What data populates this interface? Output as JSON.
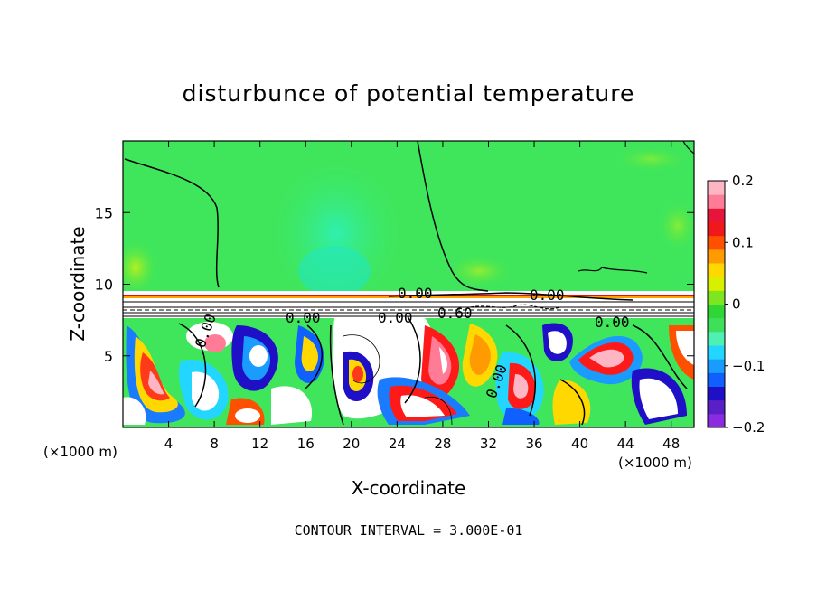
{
  "chart_data": {
    "type": "heatmap",
    "title": "disturbunce of potential temperature",
    "xlabel": "X-coordinate",
    "ylabel": "Z-coordinate",
    "x_unit_left": "(×1000 m)",
    "x_unit_right": "(×1000 m)",
    "xlim": [
      0,
      50
    ],
    "ylim": [
      0,
      20
    ],
    "x_ticks": [
      4,
      8,
      12,
      16,
      20,
      24,
      28,
      32,
      36,
      40,
      44,
      48
    ],
    "y_ticks": [
      5,
      10,
      15
    ],
    "colorbar": {
      "range": [
        -0.2,
        0.2
      ],
      "tick_values": [
        0.2,
        0.1,
        0,
        -0.1,
        -0.2
      ],
      "tick_labels": [
        "0.2",
        "0.1",
        "0",
        "−0.1",
        "−0.2"
      ],
      "colors": [
        "#8a2be2",
        "#5a20c8",
        "#1f10c8",
        "#1060ff",
        "#1a9cff",
        "#22d6ff",
        "#4ef0b4",
        "#3ee05a",
        "#2fd636",
        "#7ee61e",
        "#d8f000",
        "#ffd800",
        "#ff9a00",
        "#ff5000",
        "#f01818",
        "#e8143a",
        "#ff7b96",
        "#ffb6c4"
      ]
    },
    "contour_labels": [
      "0.00",
      "0.00",
      "0.60",
      "0.00",
      "0.00",
      "0.00",
      "0.00",
      "0.00"
    ],
    "footer": "CONTOUR INTERVAL = 3.000E-01",
    "notes": "upper layer (z>9.3) near-zero green field; lower layer (z<7.7) turbulent mixing -0.2..0.2"
  }
}
